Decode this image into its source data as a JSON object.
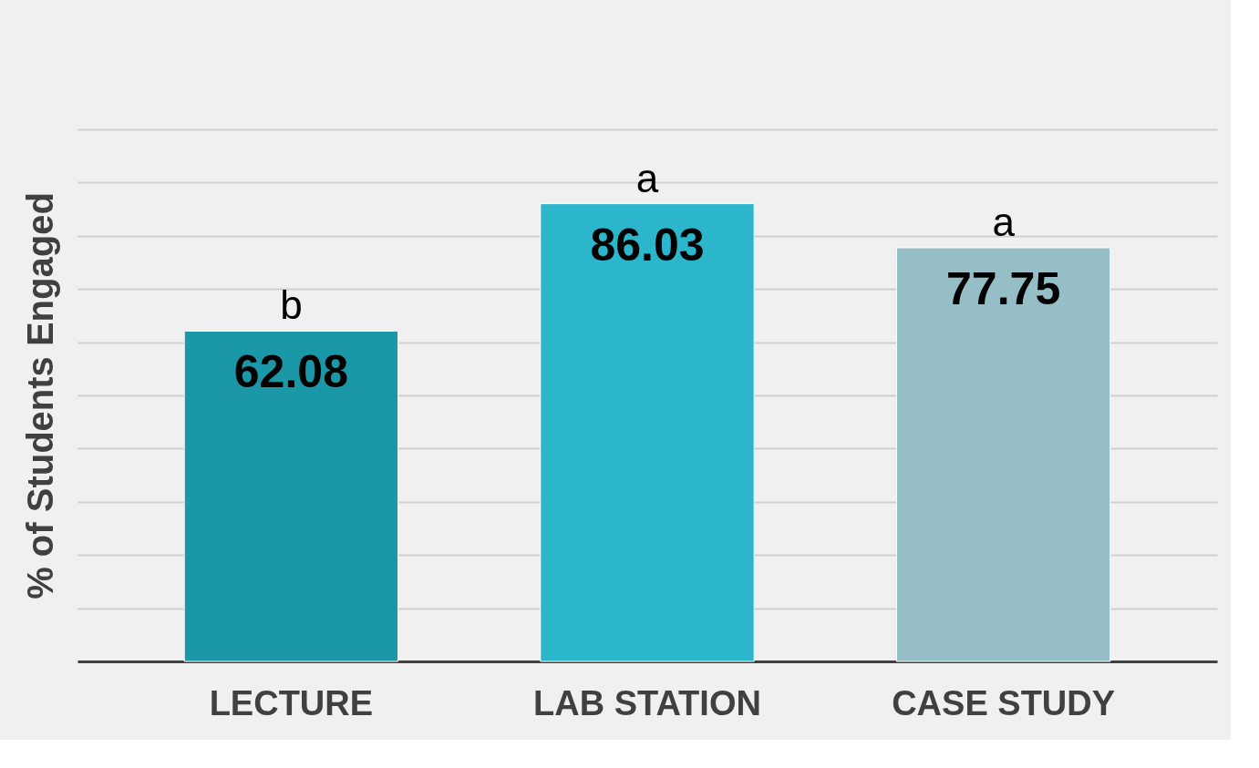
{
  "chart_data": {
    "type": "bar",
    "ylabel": "% of Students Engaged",
    "categories": [
      "LECTURE",
      "LAB STATION",
      "CASE STUDY"
    ],
    "values": [
      62.08,
      86.03,
      77.75
    ],
    "colors": [
      "#1b98a8",
      "#2bb6cc",
      "#96bec6"
    ],
    "ylim": [
      0,
      100
    ],
    "yticks": [
      {
        "value": 0,
        "label": null
      },
      {
        "value": 10,
        "label": null
      },
      {
        "value": 20,
        "label": null
      },
      {
        "value": 30,
        "label": null
      },
      {
        "value": 40,
        "label": null
      },
      {
        "value": 50,
        "label": null
      },
      {
        "value": 60,
        "label": null
      },
      {
        "value": 70,
        "label": null
      },
      {
        "value": 80,
        "label": null
      },
      {
        "value": 90,
        "label": null
      },
      {
        "value": 100,
        "label": null
      }
    ],
    "tick_labels": "x",
    "grid": "y",
    "data_labels": true,
    "annotations": [
      {
        "text": "b",
        "x": "LECTURE",
        "y": 62.08
      },
      {
        "text": "a",
        "x": "LAB STATION",
        "y": 86.03
      },
      {
        "text": "a",
        "x": "CASE STUDY",
        "y": 77.75
      }
    ]
  }
}
